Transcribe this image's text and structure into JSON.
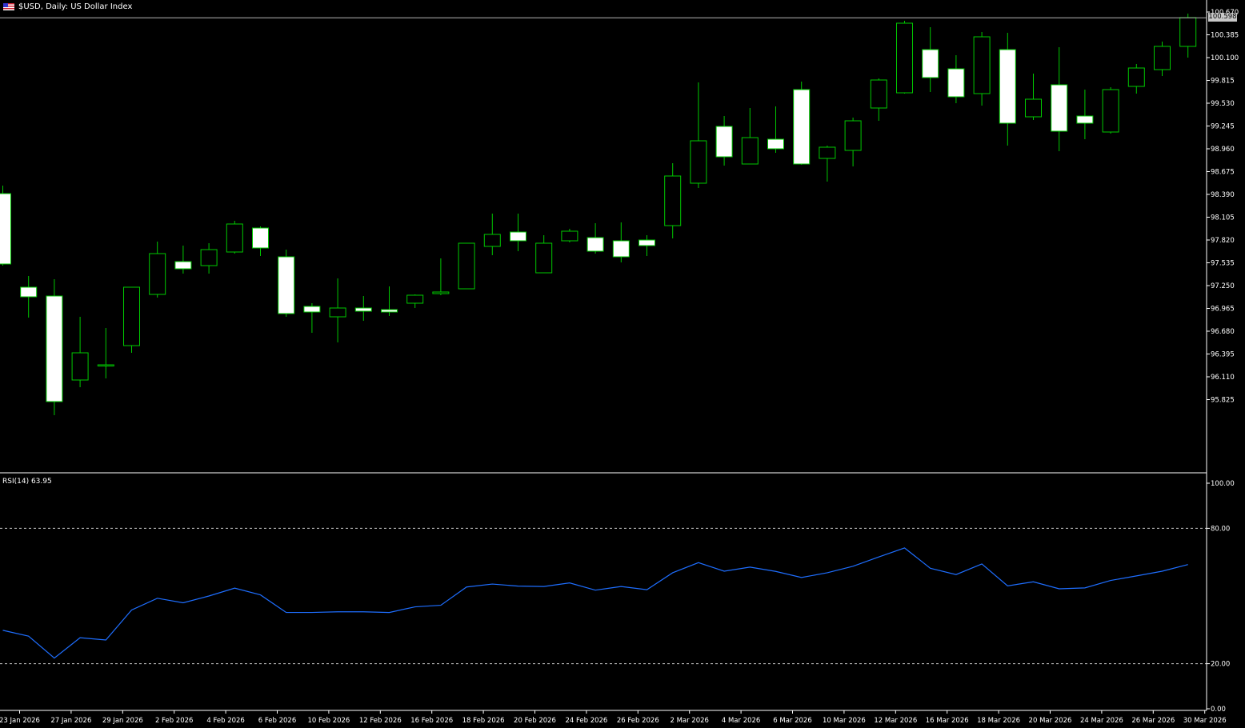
{
  "header": {
    "symbol": "$USD",
    "timeframe": "Daily",
    "title_text": "$USD, Daily:  US Dollar Index"
  },
  "current_price_label": "100.598",
  "indicator": {
    "label": "RSI(14) 63.95",
    "levels": [
      80,
      20
    ],
    "ticks": [
      "100.00",
      "80.00",
      "20.00",
      "0.00"
    ]
  },
  "colors": {
    "background": "#000000",
    "up_candle_body": "#000000",
    "down_candle_body": "#ffffff",
    "candle_outline": "#00c800",
    "rsi_line": "#1e6eff",
    "level_line": "#c8c8c8",
    "axis_text": "#ffffff"
  },
  "chart_data": {
    "type": "candlestick",
    "price_axis_ticks": [
      "100.670",
      "100.385",
      "100.100",
      "99.815",
      "99.530",
      "99.245",
      "98.960",
      "98.675",
      "98.390",
      "98.105",
      "97.820",
      "97.535",
      "97.250",
      "96.965",
      "96.680",
      "96.395",
      "96.110",
      "95.825"
    ],
    "price_range": [
      95.56,
      100.72
    ],
    "x_labels": [
      "23 Jan 2026",
      "27 Jan 2026",
      "29 Jan 2026",
      "2 Feb 2026",
      "4 Feb 2026",
      "6 Feb 2026",
      "10 Feb 2026",
      "12 Feb 2026",
      "16 Feb 2026",
      "18 Feb 2026",
      "20 Feb 2026",
      "24 Feb 2026",
      "26 Feb 2026",
      "2 Mar 2026",
      "4 Mar 2026",
      "6 Mar 2026",
      "10 Mar 2026",
      "12 Mar 2026",
      "16 Mar 2026",
      "18 Mar 2026",
      "20 Mar 2026",
      "24 Mar 2026",
      "26 Mar 2026",
      "30 Mar 2026"
    ],
    "candles": [
      {
        "o": 98.4,
        "h": 98.5,
        "l": 97.5,
        "c": 97.52
      },
      {
        "o": 97.23,
        "h": 97.37,
        "l": 96.85,
        "c": 97.11
      },
      {
        "o": 97.12,
        "h": 97.33,
        "l": 95.63,
        "c": 95.8
      },
      {
        "o": 96.07,
        "h": 96.86,
        "l": 95.98,
        "c": 96.41
      },
      {
        "o": 96.25,
        "h": 96.72,
        "l": 96.09,
        "c": 96.26
      },
      {
        "o": 96.5,
        "h": 97.23,
        "l": 96.41,
        "c": 97.23
      },
      {
        "o": 97.14,
        "h": 97.8,
        "l": 97.1,
        "c": 97.65
      },
      {
        "o": 97.55,
        "h": 97.75,
        "l": 97.4,
        "c": 97.46
      },
      {
        "o": 97.5,
        "h": 97.78,
        "l": 97.4,
        "c": 97.7
      },
      {
        "o": 97.67,
        "h": 98.06,
        "l": 97.65,
        "c": 98.02
      },
      {
        "o": 97.97,
        "h": 97.99,
        "l": 97.62,
        "c": 97.72
      },
      {
        "o": 97.61,
        "h": 97.7,
        "l": 96.86,
        "c": 96.9
      },
      {
        "o": 96.99,
        "h": 97.03,
        "l": 96.66,
        "c": 96.92
      },
      {
        "o": 96.86,
        "h": 97.34,
        "l": 96.54,
        "c": 96.97
      },
      {
        "o": 96.97,
        "h": 97.12,
        "l": 96.81,
        "c": 96.93
      },
      {
        "o": 96.95,
        "h": 97.24,
        "l": 96.87,
        "c": 96.92
      },
      {
        "o": 97.03,
        "h": 97.14,
        "l": 96.97,
        "c": 97.13
      },
      {
        "o": 97.15,
        "h": 97.59,
        "l": 97.13,
        "c": 97.17
      },
      {
        "o": 97.21,
        "h": 97.78,
        "l": 97.21,
        "c": 97.78
      },
      {
        "o": 97.74,
        "h": 98.15,
        "l": 97.63,
        "c": 97.89
      },
      {
        "o": 97.92,
        "h": 98.15,
        "l": 97.68,
        "c": 97.81
      },
      {
        "o": 97.41,
        "h": 97.88,
        "l": 97.41,
        "c": 97.78
      },
      {
        "o": 97.81,
        "h": 97.96,
        "l": 97.79,
        "c": 97.93
      },
      {
        "o": 97.85,
        "h": 98.03,
        "l": 97.65,
        "c": 97.68
      },
      {
        "o": 97.81,
        "h": 98.04,
        "l": 97.54,
        "c": 97.61
      },
      {
        "o": 97.82,
        "h": 97.88,
        "l": 97.62,
        "c": 97.75
      },
      {
        "o": 98.0,
        "h": 98.78,
        "l": 97.84,
        "c": 98.62
      },
      {
        "o": 98.53,
        "h": 99.79,
        "l": 98.47,
        "c": 99.06
      },
      {
        "o": 99.24,
        "h": 99.37,
        "l": 98.75,
        "c": 98.86
      },
      {
        "o": 98.77,
        "h": 99.47,
        "l": 98.77,
        "c": 99.1
      },
      {
        "o": 99.08,
        "h": 99.49,
        "l": 98.91,
        "c": 98.96
      },
      {
        "o": 99.7,
        "h": 99.8,
        "l": 98.76,
        "c": 98.77
      },
      {
        "o": 98.84,
        "h": 99.0,
        "l": 98.55,
        "c": 98.98
      },
      {
        "o": 98.94,
        "h": 99.35,
        "l": 98.74,
        "c": 99.31
      },
      {
        "o": 99.47,
        "h": 99.84,
        "l": 99.31,
        "c": 99.82
      },
      {
        "o": 99.66,
        "h": 100.56,
        "l": 99.65,
        "c": 100.53
      },
      {
        "o": 100.2,
        "h": 100.48,
        "l": 99.67,
        "c": 99.85
      },
      {
        "o": 99.96,
        "h": 100.13,
        "l": 99.53,
        "c": 99.61
      },
      {
        "o": 99.65,
        "h": 100.42,
        "l": 99.5,
        "c": 100.36
      },
      {
        "o": 100.2,
        "h": 100.41,
        "l": 99.0,
        "c": 99.28
      },
      {
        "o": 99.36,
        "h": 99.9,
        "l": 99.32,
        "c": 99.58
      },
      {
        "o": 99.76,
        "h": 100.23,
        "l": 98.93,
        "c": 99.18
      },
      {
        "o": 99.37,
        "h": 99.7,
        "l": 99.08,
        "c": 99.28
      },
      {
        "o": 99.17,
        "h": 99.73,
        "l": 99.15,
        "c": 99.7
      },
      {
        "o": 99.74,
        "h": 100.02,
        "l": 99.65,
        "c": 99.97
      },
      {
        "o": 99.95,
        "h": 100.3,
        "l": 99.87,
        "c": 100.24
      },
      {
        "o": 100.24,
        "h": 100.65,
        "l": 100.1,
        "c": 100.6
      }
    ],
    "rsi_range": [
      0,
      100
    ],
    "rsi": [
      34.8,
      32.2,
      22.5,
      31.5,
      30.5,
      43.8,
      49.0,
      47.0,
      50.0,
      53.5,
      50.5,
      42.7,
      42.7,
      43.0,
      43.0,
      42.7,
      45.2,
      45.9,
      54.0,
      55.3,
      54.4,
      54.2,
      55.8,
      52.6,
      54.2,
      52.8,
      60.3,
      64.8,
      61.0,
      62.8,
      60.9,
      58.2,
      60.3,
      63.2,
      67.3,
      71.3,
      62.3,
      59.5,
      64.2,
      54.5,
      56.3,
      53.2,
      53.6,
      56.9,
      58.9,
      61.0,
      63.95
    ]
  }
}
